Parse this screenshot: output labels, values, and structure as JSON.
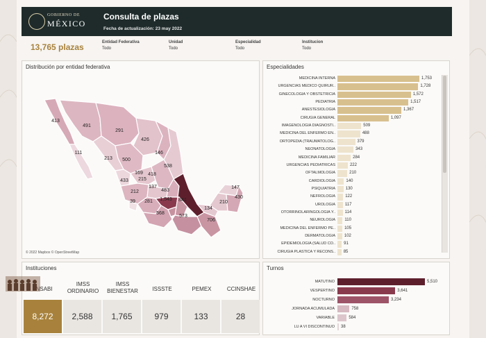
{
  "header": {
    "logo_top": "GOBIERNO DE",
    "logo_main": "MÉXICO",
    "title": "Consulta de plazas",
    "date": "Fecha de actualización: 23 may 2022"
  },
  "summary": {
    "total": "13,765 plazas"
  },
  "filters": [
    {
      "label": "Entidad Federativa",
      "value": "Todo"
    },
    {
      "label": "Unidad",
      "value": "Todo"
    },
    {
      "label": "Especialidad",
      "value": "Todo"
    },
    {
      "label": "Institucion",
      "value": "Todo"
    }
  ],
  "map": {
    "title": "Distribución por entidad federativa",
    "credit": "© 2022 Mapbox © OpenStreetMap",
    "state_values": [
      "413",
      "491",
      "291",
      "111",
      "213",
      "500",
      "426",
      "146",
      "538",
      "169",
      "418",
      "433",
      "215",
      "137",
      "212",
      "483",
      "39",
      "281",
      "1,543",
      "841",
      "568",
      "573",
      "134",
      "706",
      "210",
      "147",
      "430"
    ]
  },
  "especialidades": {
    "title": "Especialidades",
    "max": 1753,
    "items": [
      {
        "label": "MEDICINA INTERNA",
        "value": 1753,
        "text": "1,753"
      },
      {
        "label": "URGENCIAS MEDICO QUIRUR..",
        "value": 1728,
        "text": "1,728"
      },
      {
        "label": "GINECOLOGIA Y OBSTETRICIA",
        "value": 1572,
        "text": "1,572"
      },
      {
        "label": "PEDIATRIA",
        "value": 1517,
        "text": "1,517"
      },
      {
        "label": "ANESTESIOLOGIA",
        "value": 1367,
        "text": "1,367"
      },
      {
        "label": "CIRUGIA GENERAL",
        "value": 1097,
        "text": "1,097"
      },
      {
        "label": "IMAGENOLOGIA DIAGNOSTI..",
        "value": 509,
        "text": "509"
      },
      {
        "label": "MEDICINA DEL ENFERMO EN..",
        "value": 488,
        "text": "488"
      },
      {
        "label": "ORTOPEDIA (TRAUMATOLOG..",
        "value": 379,
        "text": "379"
      },
      {
        "label": "NEONATOLOGIA",
        "value": 343,
        "text": "343"
      },
      {
        "label": "MEDICINA FAMILIAR",
        "value": 284,
        "text": "284"
      },
      {
        "label": "URGENCIAS PEDIATRICAS",
        "value": 222,
        "text": "222"
      },
      {
        "label": "OFTALMOLOGIA",
        "value": 210,
        "text": "210"
      },
      {
        "label": "CARDIOLOGIA",
        "value": 140,
        "text": "140"
      },
      {
        "label": "PSIQUIATRIA",
        "value": 130,
        "text": "130"
      },
      {
        "label": "NEFROLOGIA",
        "value": 122,
        "text": "122"
      },
      {
        "label": "UROLOGIA",
        "value": 117,
        "text": "117"
      },
      {
        "label": "OTORRINOLARINGOLOGIA Y..",
        "value": 114,
        "text": "114"
      },
      {
        "label": "NEUROLOGIA",
        "value": 110,
        "text": "110"
      },
      {
        "label": "MEDICINA DEL ENFERMO PE..",
        "value": 105,
        "text": "105"
      },
      {
        "label": "DERMATOLOGIA",
        "value": 102,
        "text": "102"
      },
      {
        "label": "EPIDEMIOLOGIA (SALUD CO..",
        "value": 91,
        "text": "91"
      },
      {
        "label": "CIRUGIA PLASTICA Y RECONS..",
        "value": 85,
        "text": "85"
      }
    ]
  },
  "instituciones": {
    "title": "Instituciones",
    "items": [
      {
        "name": "INSABI",
        "value": "8,272"
      },
      {
        "name": "IMSS ORDINARIO",
        "value": "2,588"
      },
      {
        "name": "IMSS BIENESTAR",
        "value": "1,765"
      },
      {
        "name": "ISSSTE",
        "value": "979"
      },
      {
        "name": "PEMEX",
        "value": "133"
      },
      {
        "name": "CCINSHAE",
        "value": "28"
      }
    ]
  },
  "turnos": {
    "title": "Turnos",
    "max": 5510,
    "items": [
      {
        "label": "MATUTINO",
        "value": 5510,
        "text": "5,510",
        "color": "#5e1f2c"
      },
      {
        "label": "VESPERTINO",
        "value": 3641,
        "text": "3,641",
        "color": "#8a3a4d"
      },
      {
        "label": "NOCTURNO",
        "value": 3234,
        "text": "3,234",
        "color": "#9e5468"
      },
      {
        "label": "JORNADA ACUMULADA",
        "value": 758,
        "text": "758",
        "color": "#d6b9c1"
      },
      {
        "label": "VARIABLE",
        "value": 584,
        "text": "584",
        "color": "#dcc6cc"
      },
      {
        "label": "LU A VI DISCONTINUO",
        "value": 38,
        "text": "38",
        "color": "#e4d6da"
      }
    ]
  },
  "chart_data": [
    {
      "type": "bar",
      "title": "Especialidades",
      "orientation": "horizontal",
      "categories": [
        "MEDICINA INTERNA",
        "URGENCIAS MEDICO QUIRUR..",
        "GINECOLOGIA Y OBSTETRICIA",
        "PEDIATRIA",
        "ANESTESIOLOGIA",
        "CIRUGIA GENERAL",
        "IMAGENOLOGIA DIAGNOSTI..",
        "MEDICINA DEL ENFERMO EN..",
        "ORTOPEDIA (TRAUMATOLOG..",
        "NEONATOLOGIA",
        "MEDICINA FAMILIAR",
        "URGENCIAS PEDIATRICAS",
        "OFTALMOLOGIA",
        "CARDIOLOGIA",
        "PSIQUIATRIA",
        "NEFROLOGIA",
        "UROLOGIA",
        "OTORRINOLARINGOLOGIA Y..",
        "NEUROLOGIA",
        "MEDICINA DEL ENFERMO PE..",
        "DERMATOLOGIA",
        "EPIDEMIOLOGIA (SALUD CO..",
        "CIRUGIA PLASTICA Y RECONS.."
      ],
      "values": [
        1753,
        1728,
        1572,
        1517,
        1367,
        1097,
        509,
        488,
        379,
        343,
        284,
        222,
        210,
        140,
        130,
        122,
        117,
        114,
        110,
        105,
        102,
        91,
        85
      ]
    },
    {
      "type": "bar",
      "title": "Turnos",
      "orientation": "horizontal",
      "categories": [
        "MATUTINO",
        "VESPERTINO",
        "NOCTURNO",
        "JORNADA ACUMULADA",
        "VARIABLE",
        "LU A VI DISCONTINUO"
      ],
      "values": [
        5510,
        3641,
        3234,
        758,
        584,
        38
      ]
    },
    {
      "type": "table",
      "title": "Instituciones",
      "categories": [
        "INSABI",
        "IMSS ORDINARIO",
        "IMSS BIENESTAR",
        "ISSSTE",
        "PEMEX",
        "CCINSHAE"
      ],
      "values": [
        8272,
        2588,
        1765,
        979,
        133,
        28
      ]
    }
  ]
}
